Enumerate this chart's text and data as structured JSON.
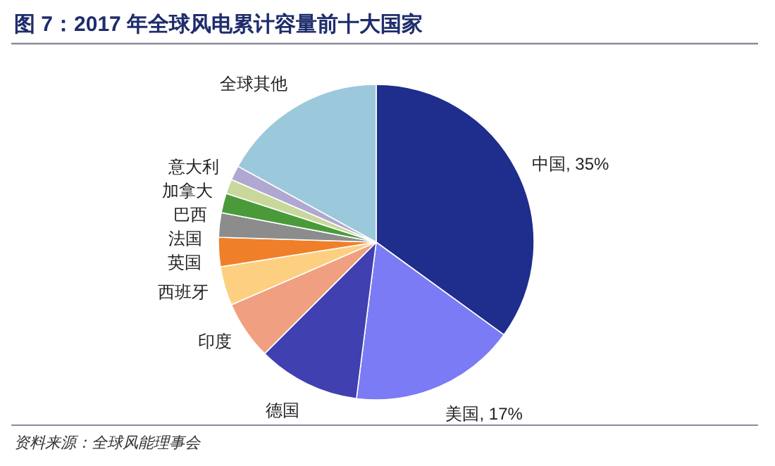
{
  "chart_data": {
    "type": "pie",
    "title": "图 7：2017 年全球风电累计容量前十大国家",
    "categories": [
      "中国",
      "美国",
      "德国",
      "印度",
      "西班牙",
      "英国",
      "法国",
      "巴西",
      "加拿大",
      "意大利",
      "全球其他"
    ],
    "values": [
      35,
      17,
      10.5,
      6,
      4,
      3,
      2.5,
      2,
      1.5,
      1.5,
      17
    ],
    "value_labels": [
      "35%",
      "17%",
      null,
      null,
      null,
      null,
      null,
      null,
      null,
      null,
      null
    ],
    "colors": [
      "#1f2d8c",
      "#7b7bf5",
      "#4040b0",
      "#f0a080",
      "#fcd080",
      "#f07f2a",
      "#8c8c8c",
      "#4a9a3a",
      "#c8d89a",
      "#b0a8d0",
      "#9cc8dc"
    ],
    "annotations": [
      "资料来源：全球风能理事会"
    ]
  }
}
